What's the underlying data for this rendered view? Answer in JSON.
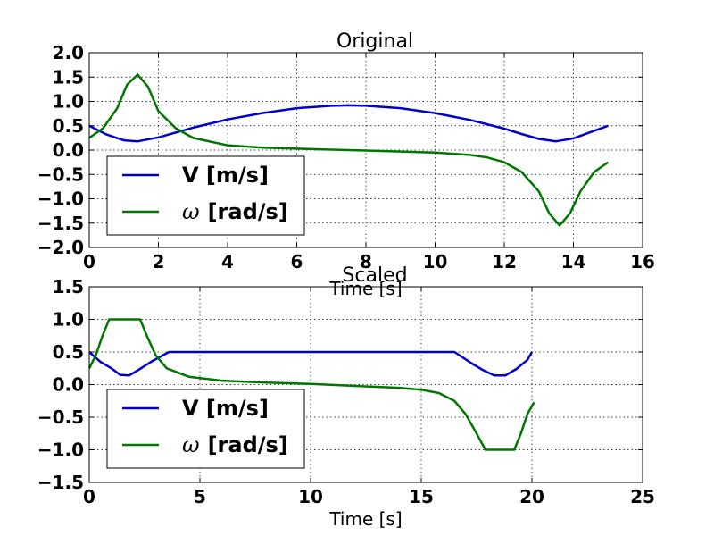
{
  "chart_data": [
    {
      "type": "line",
      "title": "Original",
      "xlabel": "Time [s]",
      "ylabel": "",
      "xlim": [
        0,
        16
      ],
      "ylim": [
        -2.0,
        2.0
      ],
      "xticks": [
        "0",
        "2",
        "4",
        "6",
        "8",
        "10",
        "12",
        "14",
        "16"
      ],
      "yticks": [
        "2.0",
        "1.5",
        "1.0",
        "0.5",
        "0.0",
        "−0.5",
        "−1.0",
        "−1.5",
        "−2.0"
      ],
      "grid": true,
      "legend_position": "lower-left",
      "series": [
        {
          "name": "V [m/s]",
          "legend_prefix": "",
          "legend_main": "V [m/s]",
          "color": "#0000cc",
          "x": [
            0,
            0.5,
            1.0,
            1.4,
            2.0,
            3.0,
            4.0,
            5.0,
            6.0,
            7.0,
            7.5,
            8.0,
            9.0,
            10.0,
            11.0,
            12.0,
            12.5,
            13.0,
            13.5,
            14.0,
            14.5,
            15.0
          ],
          "y": [
            0.5,
            0.32,
            0.2,
            0.18,
            0.26,
            0.46,
            0.63,
            0.76,
            0.86,
            0.91,
            0.92,
            0.91,
            0.86,
            0.76,
            0.62,
            0.44,
            0.33,
            0.23,
            0.18,
            0.24,
            0.37,
            0.5
          ]
        },
        {
          "name": "ω [rad/s]",
          "legend_prefix": "ω",
          "legend_main": "[rad/s]",
          "color": "#007700",
          "x": [
            0,
            0.4,
            0.8,
            1.1,
            1.4,
            1.7,
            2.0,
            2.5,
            3.0,
            4.0,
            5.0,
            6.0,
            7.0,
            8.0,
            9.0,
            10.0,
            11.0,
            11.5,
            12.0,
            12.5,
            13.0,
            13.3,
            13.6,
            13.9,
            14.2,
            14.6,
            15.0
          ],
          "y": [
            0.25,
            0.45,
            0.85,
            1.35,
            1.55,
            1.3,
            0.8,
            0.45,
            0.25,
            0.1,
            0.05,
            0.03,
            0.01,
            -0.01,
            -0.03,
            -0.05,
            -0.1,
            -0.15,
            -0.25,
            -0.45,
            -0.85,
            -1.3,
            -1.55,
            -1.3,
            -0.85,
            -0.45,
            -0.25
          ]
        }
      ]
    },
    {
      "type": "line",
      "title": "Scaled",
      "xlabel": "Time [s]",
      "ylabel": "",
      "xlim": [
        0,
        25
      ],
      "ylim": [
        -1.5,
        1.5
      ],
      "xticks": [
        "0",
        "5",
        "10",
        "15",
        "20",
        "25"
      ],
      "yticks": [
        "1.5",
        "1.0",
        "0.5",
        "0.0",
        "−0.5",
        "−1.0",
        "−1.5"
      ],
      "grid": true,
      "legend_position": "lower-left",
      "series": [
        {
          "name": "V [m/s]",
          "legend_prefix": "",
          "legend_main": "V [m/s]",
          "color": "#0000cc",
          "x": [
            0,
            0.5,
            1.0,
            1.4,
            1.8,
            2.2,
            2.8,
            3.6,
            16.5,
            17.3,
            17.8,
            18.3,
            18.8,
            19.3,
            19.8,
            20.0
          ],
          "y": [
            0.5,
            0.35,
            0.25,
            0.15,
            0.14,
            0.22,
            0.35,
            0.5,
            0.5,
            0.32,
            0.22,
            0.14,
            0.14,
            0.24,
            0.38,
            0.5
          ]
        },
        {
          "name": "ω [rad/s]",
          "legend_prefix": "ω",
          "legend_main": "[rad/s]",
          "color": "#007700",
          "x": [
            0,
            0.3,
            0.6,
            0.9,
            2.3,
            2.6,
            3.0,
            3.5,
            4.5,
            6.0,
            8.0,
            10.0,
            12.0,
            14.0,
            15.0,
            15.8,
            16.5,
            17.0,
            17.5,
            17.9,
            19.2,
            19.5,
            19.8,
            20.1
          ],
          "y": [
            0.25,
            0.45,
            0.75,
            1.0,
            1.0,
            0.75,
            0.45,
            0.25,
            0.12,
            0.06,
            0.03,
            0.01,
            -0.02,
            -0.05,
            -0.08,
            -0.13,
            -0.25,
            -0.45,
            -0.75,
            -1.0,
            -1.0,
            -0.75,
            -0.45,
            -0.27
          ]
        }
      ]
    }
  ]
}
